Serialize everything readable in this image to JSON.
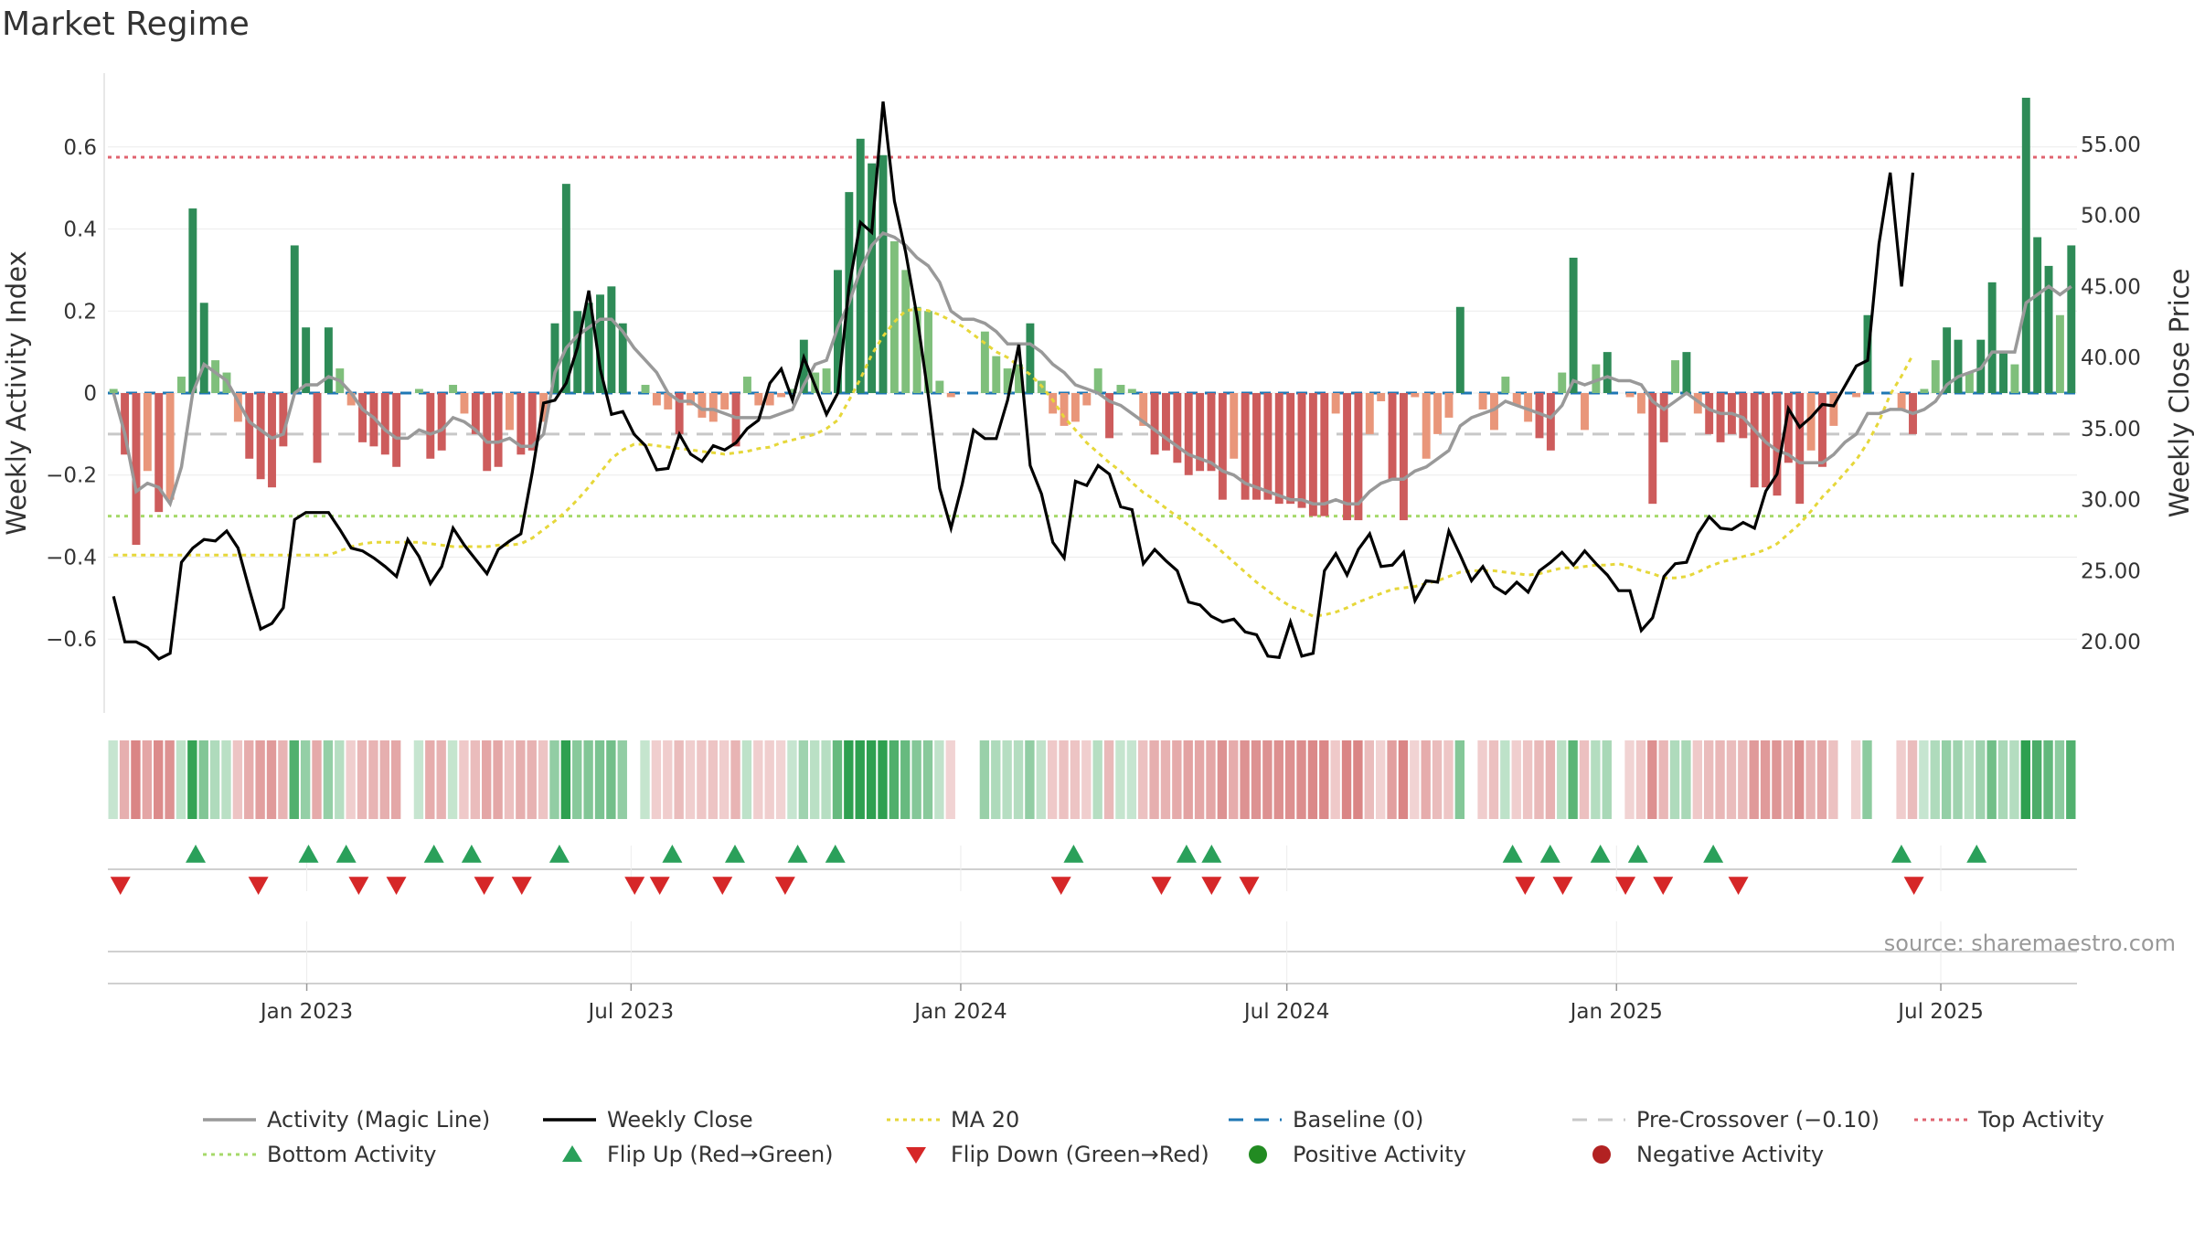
{
  "chart_data": {
    "type": "bar+line",
    "title": "Market Regime",
    "ylabel_left": "Weekly Activity Index",
    "ylabel_right": "Weekly Close Price",
    "source": "source: sharemaestro.com",
    "x_start": "2022-09-12",
    "x_end": "2025-09-15",
    "x_ticks": [
      {
        "date": "2023-01-01",
        "label": "Jan 2023"
      },
      {
        "date": "2023-07-01",
        "label": "Jul 2023"
      },
      {
        "date": "2024-01-01",
        "label": "Jan 2024"
      },
      {
        "date": "2024-07-01",
        "label": "Jul 2024"
      },
      {
        "date": "2025-01-01",
        "label": "Jan 2025"
      },
      {
        "date": "2025-07-01",
        "label": "Jul 2025"
      }
    ],
    "y_left": {
      "range": [
        -0.78,
        0.78
      ],
      "ticks": [
        -0.6,
        -0.4,
        -0.2,
        0,
        0.2,
        0.4,
        0.6
      ],
      "tick_labels": [
        "−0.6",
        "−0.4",
        "−0.2",
        "0",
        "0.2",
        "0.4",
        "0.6"
      ]
    },
    "y_right": {
      "range": [
        15,
        60
      ],
      "ticks": [
        20,
        25,
        30,
        35,
        40,
        45,
        50,
        55
      ],
      "tick_labels": [
        "20.00",
        "25.00",
        "30.00",
        "35.00",
        "40.00",
        "45.00",
        "50.00",
        "55.00"
      ]
    },
    "reference_lines": {
      "baseline": 0,
      "pre_crossover": -0.1,
      "top_activity": 0.575,
      "bottom_activity": -0.3
    },
    "activity": [
      0.01,
      -0.15,
      -0.37,
      -0.19,
      -0.29,
      -0.26,
      0.04,
      0.45,
      0.22,
      0.08,
      0.05,
      -0.07,
      -0.16,
      -0.21,
      -0.23,
      -0.13,
      0.36,
      0.16,
      -0.17,
      0.16,
      0.06,
      -0.03,
      -0.12,
      -0.13,
      -0.15,
      -0.18,
      0.0,
      0.01,
      -0.16,
      -0.14,
      0.02,
      -0.05,
      -0.1,
      -0.19,
      -0.18,
      -0.09,
      -0.15,
      -0.14,
      -0.07,
      0.17,
      0.51,
      0.2,
      0.22,
      0.24,
      0.26,
      0.17,
      0.0,
      0.02,
      -0.03,
      -0.04,
      -0.1,
      -0.03,
      -0.06,
      -0.07,
      -0.04,
      -0.13,
      0.04,
      -0.03,
      -0.03,
      -0.01,
      0.01,
      0.13,
      0.05,
      0.06,
      0.3,
      0.49,
      0.62,
      0.56,
      0.58,
      0.37,
      0.3,
      0.21,
      0.2,
      0.03,
      -0.01,
      0.0,
      0.0,
      0.15,
      0.09,
      0.06,
      0.07,
      0.17,
      0.03,
      -0.05,
      -0.08,
      -0.07,
      -0.03,
      0.06,
      -0.11,
      0.02,
      0.01,
      -0.08,
      -0.15,
      -0.14,
      -0.17,
      -0.2,
      -0.19,
      -0.19,
      -0.26,
      -0.16,
      -0.26,
      -0.26,
      -0.26,
      -0.27,
      -0.27,
      -0.28,
      -0.3,
      -0.3,
      -0.05,
      -0.31,
      -0.31,
      -0.1,
      -0.02,
      -0.21,
      -0.31,
      -0.01,
      -0.16,
      -0.1,
      -0.06,
      0.21,
      0.0,
      -0.04,
      -0.09,
      0.04,
      -0.03,
      -0.07,
      -0.11,
      -0.14,
      0.05,
      0.33,
      -0.09,
      0.07,
      0.1,
      0.0,
      -0.01,
      -0.05,
      -0.27,
      -0.12,
      0.08,
      0.1,
      -0.05,
      -0.1,
      -0.12,
      -0.1,
      -0.11,
      -0.23,
      -0.23,
      -0.25,
      -0.17,
      -0.27,
      -0.14,
      -0.18,
      -0.08,
      0.0,
      -0.01,
      0.19,
      0.0,
      0.0,
      -0.04,
      -0.1,
      0.01,
      0.08,
      0.16,
      0.13,
      0.05,
      0.13,
      0.27,
      0.1,
      0.07,
      0.72,
      0.38,
      0.31,
      0.19,
      0.36
    ],
    "activity_ma": [
      0.0,
      -0.1,
      -0.24,
      -0.22,
      -0.23,
      -0.27,
      -0.18,
      0.0,
      0.07,
      0.05,
      0.03,
      -0.02,
      -0.07,
      -0.09,
      -0.11,
      -0.1,
      0.0,
      0.02,
      0.02,
      0.04,
      0.03,
      0.0,
      -0.04,
      -0.06,
      -0.09,
      -0.11,
      -0.11,
      -0.09,
      -0.1,
      -0.09,
      -0.06,
      -0.07,
      -0.09,
      -0.12,
      -0.12,
      -0.11,
      -0.13,
      -0.13,
      -0.1,
      0.05,
      0.11,
      0.14,
      0.16,
      0.18,
      0.18,
      0.15,
      0.11,
      0.08,
      0.05,
      0.0,
      -0.02,
      -0.02,
      -0.04,
      -0.04,
      -0.05,
      -0.06,
      -0.06,
      -0.06,
      -0.06,
      -0.05,
      -0.04,
      0.02,
      0.07,
      0.08,
      0.16,
      0.22,
      0.3,
      0.36,
      0.39,
      0.38,
      0.36,
      0.33,
      0.31,
      0.27,
      0.2,
      0.18,
      0.18,
      0.17,
      0.15,
      0.12,
      0.12,
      0.12,
      0.1,
      0.07,
      0.05,
      0.02,
      0.01,
      0.0,
      -0.02,
      -0.03,
      -0.05,
      -0.07,
      -0.09,
      -0.11,
      -0.13,
      -0.15,
      -0.16,
      -0.17,
      -0.19,
      -0.2,
      -0.22,
      -0.23,
      -0.24,
      -0.25,
      -0.26,
      -0.26,
      -0.27,
      -0.27,
      -0.26,
      -0.27,
      -0.27,
      -0.24,
      -0.22,
      -0.21,
      -0.21,
      -0.19,
      -0.18,
      -0.16,
      -0.14,
      -0.08,
      -0.06,
      -0.05,
      -0.04,
      -0.02,
      -0.03,
      -0.04,
      -0.05,
      -0.06,
      -0.03,
      0.03,
      0.02,
      0.03,
      0.04,
      0.03,
      0.03,
      0.02,
      -0.02,
      -0.04,
      -0.02,
      0.0,
      -0.02,
      -0.04,
      -0.05,
      -0.05,
      -0.06,
      -0.09,
      -0.12,
      -0.14,
      -0.15,
      -0.17,
      -0.17,
      -0.17,
      -0.15,
      -0.12,
      -0.1,
      -0.05,
      -0.05,
      -0.04,
      -0.04,
      -0.05,
      -0.04,
      -0.02,
      0.02,
      0.04,
      0.05,
      0.06,
      0.1,
      0.1,
      0.1,
      0.22,
      0.24,
      0.26,
      0.24,
      0.26
    ],
    "close": [
      23.2,
      20.0,
      20.0,
      19.6,
      18.8,
      19.2,
      25.6,
      26.6,
      27.2,
      27.1,
      27.8,
      26.6,
      23.7,
      20.9,
      21.3,
      22.4,
      28.6,
      29.1,
      29.1,
      29.1,
      27.9,
      26.6,
      26.4,
      25.9,
      25.3,
      24.6,
      27.2,
      26.0,
      24.1,
      25.3,
      28.0,
      26.8,
      25.8,
      24.8,
      26.5,
      27.1,
      27.6,
      31.9,
      36.8,
      37.0,
      38.2,
      40.7,
      44.7,
      39.2,
      36.0,
      36.2,
      34.6,
      33.8,
      32.1,
      32.2,
      34.6,
      33.2,
      32.7,
      33.8,
      33.5,
      34.0,
      35.0,
      35.6,
      38.2,
      39.2,
      37.0,
      40.0,
      38.0,
      36.0,
      37.5,
      45.0,
      49.5,
      48.8,
      58.0,
      51.0,
      47.4,
      42.9,
      37.3,
      30.8,
      28.0,
      31.1,
      34.9,
      34.3,
      34.3,
      37.0,
      40.9,
      32.4,
      30.4,
      27.0,
      25.9,
      31.3,
      31.0,
      32.4,
      31.8,
      29.5,
      29.3,
      25.5,
      26.5,
      25.7,
      25.0,
      22.8,
      22.6,
      21.8,
      21.4,
      21.6,
      20.7,
      20.5,
      19.0,
      18.9,
      21.4,
      19.0,
      19.2,
      25.0,
      26.2,
      24.7,
      26.5,
      27.6,
      25.3,
      25.4,
      26.3,
      22.9,
      24.3,
      24.2,
      27.8,
      26.1,
      24.3,
      25.3,
      23.9,
      23.4,
      24.2,
      23.5,
      25.0,
      25.6,
      26.3,
      25.4,
      26.4,
      25.5,
      24.7,
      23.6,
      23.6,
      20.8,
      21.7,
      24.6,
      25.5,
      25.6,
      27.6,
      28.8,
      28.0,
      27.9,
      28.4,
      28.0,
      30.6,
      31.8,
      36.4,
      35.1,
      35.8,
      36.7,
      36.6,
      38.0,
      39.4,
      39.8,
      48.0,
      53.0,
      45.0,
      53.0
    ],
    "close_ma20": [
      26.1,
      26.1,
      26.1,
      26.1,
      26.1,
      26.1,
      26.1,
      26.1,
      26.1,
      26.1,
      26.1,
      26.1,
      26.1,
      26.1,
      26.1,
      26.1,
      26.1,
      26.1,
      26.1,
      26.1,
      26.4,
      26.7,
      26.9,
      27.0,
      27.0,
      27.0,
      27.0,
      27.0,
      26.9,
      26.8,
      26.7,
      26.7,
      26.7,
      26.7,
      26.8,
      26.8,
      26.9,
      27.3,
      27.9,
      28.5,
      29.2,
      30.0,
      30.9,
      31.9,
      32.9,
      33.5,
      33.9,
      33.9,
      33.8,
      33.7,
      33.6,
      33.5,
      33.4,
      33.3,
      33.2,
      33.3,
      33.4,
      33.6,
      33.7,
      34.0,
      34.2,
      34.4,
      34.6,
      35.0,
      35.6,
      37.0,
      38.5,
      40.2,
      41.5,
      42.5,
      43.3,
      43.4,
      43.3,
      43.0,
      42.6,
      42.2,
      41.6,
      41.0,
      40.4,
      40.0,
      39.4,
      38.8,
      38.0,
      37.0,
      35.8,
      34.9,
      34.0,
      33.3,
      32.6,
      32.0,
      31.2,
      30.5,
      30.0,
      29.4,
      28.8,
      28.2,
      27.6,
      27.0,
      26.3,
      25.6,
      24.9,
      24.2,
      23.6,
      23.0,
      22.5,
      22.2,
      21.8,
      21.9,
      22.1,
      22.4,
      22.8,
      23.1,
      23.4,
      23.7,
      23.8,
      23.9,
      24.1,
      24.3,
      24.6,
      24.9,
      25.0,
      25.0,
      25.0,
      24.9,
      24.8,
      24.7,
      24.8,
      25.0,
      25.2,
      25.2,
      25.3,
      25.4,
      25.4,
      25.5,
      25.3,
      25.0,
      24.8,
      24.5,
      24.5,
      24.6,
      24.9,
      25.3,
      25.6,
      25.8,
      26.0,
      26.2,
      26.5,
      26.9,
      27.6,
      28.3,
      29.2,
      30.2,
      31.0,
      31.9,
      32.8,
      34.0,
      35.5,
      37.4,
      38.7,
      40.2
    ],
    "flip_up": [
      "2022-10-31",
      "2023-01-02",
      "2023-01-23",
      "2023-03-13",
      "2023-04-03",
      "2023-05-22",
      "2023-07-24",
      "2023-08-28",
      "2023-10-02",
      "2023-10-23",
      "2024-03-04",
      "2024-05-06",
      "2024-05-20",
      "2024-11-04",
      "2024-11-25",
      "2024-12-23",
      "2025-01-13",
      "2025-02-24",
      "2025-06-09",
      "2025-07-21"
    ],
    "flip_down": [
      "2022-09-19",
      "2022-12-05",
      "2023-01-30",
      "2023-02-20",
      "2023-04-10",
      "2023-05-01",
      "2023-07-03",
      "2023-07-17",
      "2023-08-21",
      "2023-09-25",
      "2024-02-26",
      "2024-04-22",
      "2024-05-20",
      "2024-06-10",
      "2024-11-11",
      "2024-12-02",
      "2025-01-06",
      "2025-01-27",
      "2025-03-10",
      "2025-06-16"
    ],
    "legend": [
      {
        "label": "Activity (Magic Line)",
        "symbol": "line",
        "color": "#999999"
      },
      {
        "label": "Weekly Close",
        "symbol": "line",
        "color": "#000000"
      },
      {
        "label": "MA 20",
        "symbol": "dotted",
        "color": "#e6d73a"
      },
      {
        "label": "Baseline (0)",
        "symbol": "dashed",
        "color": "#1f77b4"
      },
      {
        "label": "Pre-Crossover (−0.10)",
        "symbol": "dashed",
        "color": "#c8c8c8"
      },
      {
        "label": "Top Activity",
        "symbol": "dotted",
        "color": "#e06470"
      },
      {
        "label": "Bottom Activity",
        "symbol": "dotted",
        "color": "#a6d96a"
      },
      {
        "label": "Flip Up (Red→Green)",
        "symbol": "triangle-up",
        "color": "#2aa05a"
      },
      {
        "label": "Flip Down (Green→Red)",
        "symbol": "triangle-down",
        "color": "#d62728"
      },
      {
        "label": "Positive Activity",
        "symbol": "circle",
        "color": "#228b22"
      },
      {
        "label": "Negative Activity",
        "symbol": "circle",
        "color": "#b22222"
      }
    ],
    "colors": {
      "pos_strong": "#2e8b57",
      "pos_weak": "#7fbf7b",
      "neg_strong": "#cd5c5c",
      "neg_weak": "#e9967a"
    }
  }
}
